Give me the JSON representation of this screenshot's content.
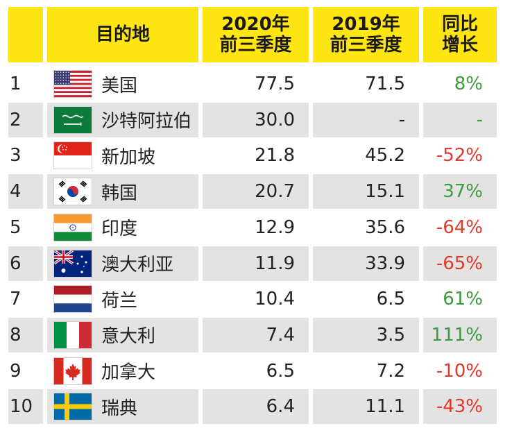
{
  "header": {
    "destination": "目的地",
    "col2020_line1": "2020年",
    "col2020_line2": "前三季度",
    "col2019_line1": "2019年",
    "col2019_line2": "前三季度",
    "yoy_line1": "同比",
    "yoy_line2": "增长"
  },
  "colors": {
    "header_bg": "#ffe512",
    "row_alt_bg": "#e3e3e3",
    "positive": "#3f9a3f",
    "negative": "#e03a2c",
    "neutral": "#3f9a3f"
  },
  "chart_data": {
    "type": "table",
    "columns": [
      "",
      "目的地",
      "2020年前三季度",
      "2019年前三季度",
      "同比增长"
    ],
    "rows": [
      {
        "rank": "1",
        "flag": "flag-usa-icon",
        "destination": "美国",
        "v2020": "77.5",
        "v2019": "71.5",
        "yoy": "8%",
        "trend": "positive"
      },
      {
        "rank": "2",
        "flag": "flag-saudi-arabia-icon",
        "destination": "沙特阿拉伯",
        "v2020": "30.0",
        "v2019": "-",
        "yoy": "-",
        "trend": "neutral"
      },
      {
        "rank": "3",
        "flag": "flag-singapore-icon",
        "destination": "新加坡",
        "v2020": "21.8",
        "v2019": "45.2",
        "yoy": "-52%",
        "trend": "negative"
      },
      {
        "rank": "4",
        "flag": "flag-south-korea-icon",
        "destination": "韩国",
        "v2020": "20.7",
        "v2019": "15.1",
        "yoy": "37%",
        "trend": "positive"
      },
      {
        "rank": "5",
        "flag": "flag-india-icon",
        "destination": "印度",
        "v2020": "12.9",
        "v2019": "35.6",
        "yoy": "-64%",
        "trend": "negative"
      },
      {
        "rank": "6",
        "flag": "flag-australia-icon",
        "destination": "澳大利亚",
        "v2020": "11.9",
        "v2019": "33.9",
        "yoy": "-65%",
        "trend": "negative"
      },
      {
        "rank": "7",
        "flag": "flag-netherlands-icon",
        "destination": "荷兰",
        "v2020": "10.4",
        "v2019": "6.5",
        "yoy": "61%",
        "trend": "positive"
      },
      {
        "rank": "8",
        "flag": "flag-italy-icon",
        "destination": "意大利",
        "v2020": "7.4",
        "v2019": "3.5",
        "yoy": "111%",
        "trend": "positive"
      },
      {
        "rank": "9",
        "flag": "flag-canada-icon",
        "destination": "加拿大",
        "v2020": "6.5",
        "v2019": "7.2",
        "yoy": "-10%",
        "trend": "negative"
      },
      {
        "rank": "10",
        "flag": "flag-sweden-icon",
        "destination": "瑞典",
        "v2020": "6.4",
        "v2019": "11.1",
        "yoy": "-43%",
        "trend": "negative"
      }
    ]
  }
}
